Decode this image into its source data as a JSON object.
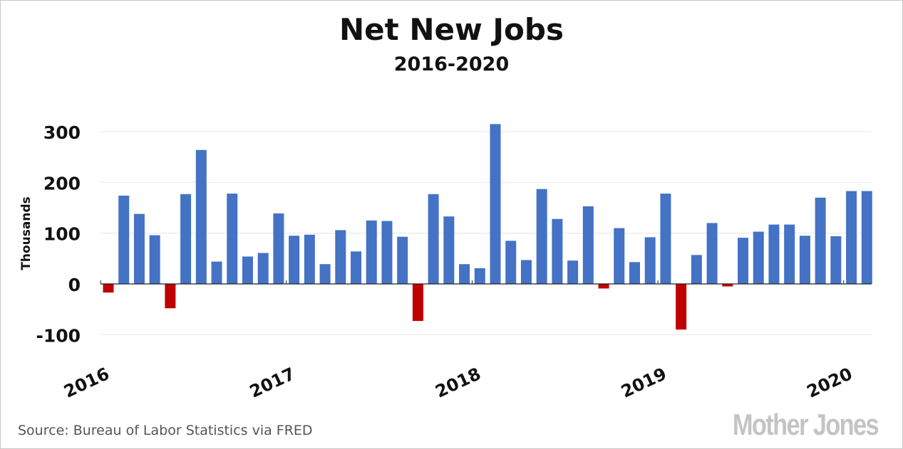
{
  "chart_data": {
    "type": "bar",
    "title": "Net New Jobs",
    "subtitle": "2016-2020",
    "ylabel": "Thousands",
    "ylim": [
      -100,
      300
    ],
    "yticks": [
      300,
      200,
      100,
      0,
      -100
    ],
    "xtick_labels": [
      "2016",
      "2017",
      "2018",
      "2019",
      "2020"
    ],
    "x": [
      "2016-01",
      "2016-02",
      "2016-03",
      "2016-04",
      "2016-05",
      "2016-06",
      "2016-07",
      "2016-08",
      "2016-09",
      "2016-10",
      "2016-11",
      "2016-12",
      "2017-01",
      "2017-02",
      "2017-03",
      "2017-04",
      "2017-05",
      "2017-06",
      "2017-07",
      "2017-08",
      "2017-09",
      "2017-10",
      "2017-11",
      "2017-12",
      "2018-01",
      "2018-02",
      "2018-03",
      "2018-04",
      "2018-05",
      "2018-06",
      "2018-07",
      "2018-08",
      "2018-09",
      "2018-10",
      "2018-11",
      "2018-12",
      "2019-01",
      "2019-02",
      "2019-03",
      "2019-04",
      "2019-05",
      "2019-06",
      "2019-07",
      "2019-08",
      "2019-09",
      "2019-10",
      "2019-11",
      "2019-12",
      "2020-01",
      "2020-02"
    ],
    "values": [
      -17,
      174,
      138,
      96,
      -48,
      177,
      264,
      44,
      178,
      54,
      61,
      139,
      95,
      97,
      39,
      106,
      64,
      125,
      124,
      93,
      -73,
      177,
      133,
      39,
      31,
      315,
      85,
      47,
      187,
      128,
      46,
      153,
      -9,
      110,
      43,
      92,
      178,
      -90,
      57,
      120,
      -5,
      91,
      103,
      117,
      117,
      95,
      170,
      94,
      183,
      183
    ],
    "grid": true,
    "colors": {
      "positive": "#4472c4",
      "negative": "#c00000"
    }
  },
  "footer": {
    "source": "Source: Bureau of Labor Statistics via FRED",
    "logo": "Mother Jones"
  }
}
